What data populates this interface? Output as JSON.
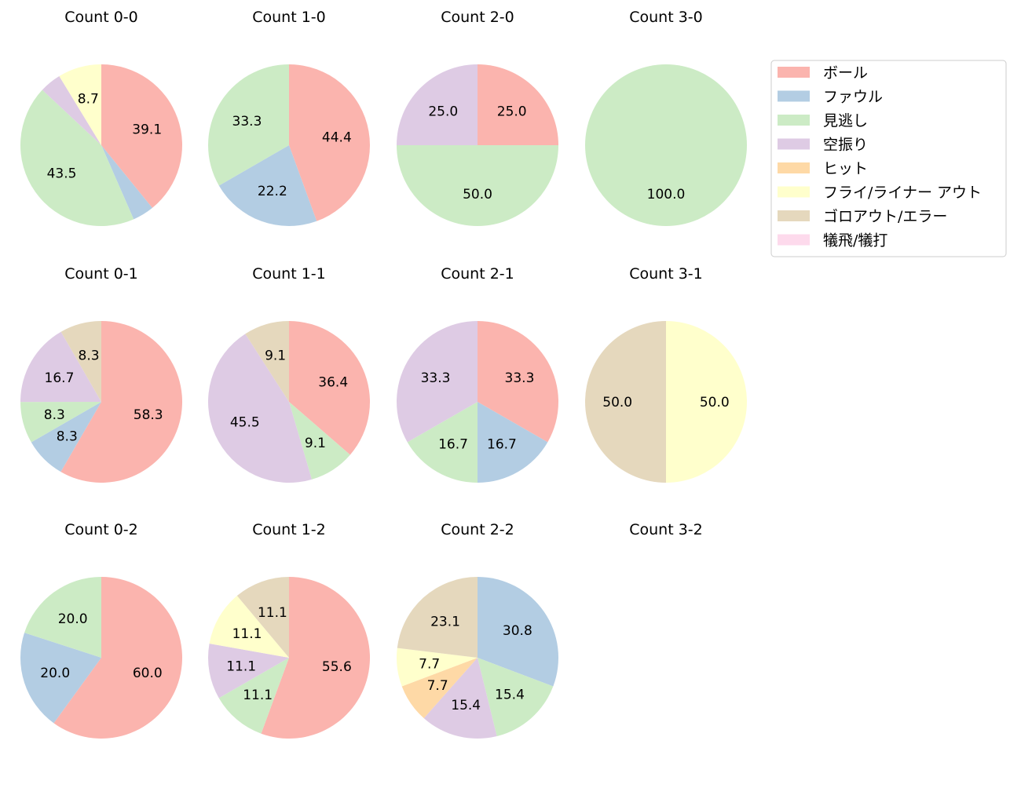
{
  "chart_data": {
    "type": "pie",
    "direction": "clockwise",
    "start_angle_deg": 90,
    "label_format": "percent, 1 decimal",
    "categories": [
      "ボール",
      "ファウル",
      "見逃し",
      "空振り",
      "ヒット",
      "フライ/ライナー アウト",
      "ゴロアウト/エラー",
      "犠飛/犠打"
    ],
    "colors": [
      "#fbb4ae",
      "#b3cde3",
      "#ccebc5",
      "#decbe4",
      "#fed9a6",
      "#ffffcc",
      "#e5d8bd",
      "#fddaec"
    ],
    "legend_position": "top-right",
    "charts": [
      {
        "title": "Count 0-0",
        "values": [
          39.1,
          4.3,
          43.5,
          4.3,
          0,
          8.7,
          0,
          0
        ]
      },
      {
        "title": "Count 1-0",
        "values": [
          44.4,
          22.2,
          33.3,
          0,
          0,
          0,
          0,
          0
        ]
      },
      {
        "title": "Count 2-0",
        "values": [
          25.0,
          0,
          50.0,
          25.0,
          0,
          0,
          0,
          0
        ]
      },
      {
        "title": "Count 3-0",
        "values": [
          0,
          0,
          100.0,
          0,
          0,
          0,
          0,
          0
        ]
      },
      {
        "title": "Count 0-1",
        "values": [
          58.3,
          8.3,
          8.3,
          16.7,
          0,
          0,
          8.3,
          0
        ]
      },
      {
        "title": "Count 1-1",
        "values": [
          36.4,
          0,
          9.1,
          45.5,
          0,
          0,
          9.1,
          0
        ]
      },
      {
        "title": "Count 2-1",
        "values": [
          33.3,
          16.7,
          16.7,
          33.3,
          0,
          0,
          0,
          0
        ]
      },
      {
        "title": "Count 3-1",
        "values": [
          0,
          0,
          0,
          0,
          0,
          50.0,
          50.0,
          0
        ]
      },
      {
        "title": "Count 0-2",
        "values": [
          60.0,
          20.0,
          20.0,
          0,
          0,
          0,
          0,
          0
        ]
      },
      {
        "title": "Count 1-2",
        "values": [
          55.6,
          0,
          11.1,
          11.1,
          0,
          11.1,
          11.1,
          0
        ]
      },
      {
        "title": "Count 2-2",
        "values": [
          0,
          30.8,
          15.4,
          15.4,
          7.7,
          7.7,
          23.1,
          0
        ]
      },
      {
        "title": "Count 3-2",
        "values": []
      }
    ]
  }
}
